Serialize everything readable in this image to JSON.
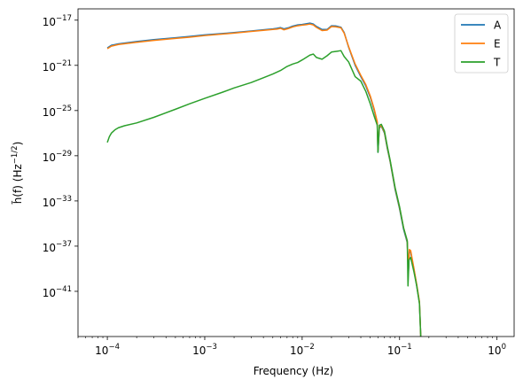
{
  "chart_data": {
    "type": "line",
    "xlabel": "Frequency (Hz)",
    "ylabel_parts": {
      "sym": "h̃(f)",
      "unit": "(Hz",
      "exp": "−1/2",
      "close": ")"
    },
    "xscale": "log",
    "yscale": "log",
    "xlim": [
      5e-05,
      1.5
    ],
    "ylim": [
      1e-45,
      1e-16
    ],
    "grid": false,
    "legend_placement": "top-right",
    "x_ticks": [
      {
        "value": 0.0001,
        "base": "10",
        "exp": "−4"
      },
      {
        "value": 0.001,
        "base": "10",
        "exp": "−3"
      },
      {
        "value": 0.01,
        "base": "10",
        "exp": "−2"
      },
      {
        "value": 0.1,
        "base": "10",
        "exp": "−1"
      },
      {
        "value": 1,
        "base": "10",
        "exp": "0"
      }
    ],
    "y_ticks": [
      {
        "value": 1e-17,
        "base": "10",
        "exp": "−17"
      },
      {
        "value": 1e-21,
        "base": "10",
        "exp": "−21"
      },
      {
        "value": 1e-25,
        "base": "10",
        "exp": "−25"
      },
      {
        "value": 1e-29,
        "base": "10",
        "exp": "−29"
      },
      {
        "value": 1e-33,
        "base": "10",
        "exp": "−33"
      },
      {
        "value": 1e-37,
        "base": "10",
        "exp": "−37"
      },
      {
        "value": 1e-41,
        "base": "10",
        "exp": "−41"
      }
    ],
    "series": [
      {
        "name": "A",
        "color": "#1f77b4",
        "points": [
          [
            0.0001,
            3.5e-20
          ],
          [
            0.00011,
            6e-20
          ],
          [
            0.00013,
            8e-20
          ],
          [
            0.0002,
            1.3e-19
          ],
          [
            0.0003,
            1.9e-19
          ],
          [
            0.0005,
            2.8e-19
          ],
          [
            0.0007,
            3.6e-19
          ],
          [
            0.001,
            5e-19
          ],
          [
            0.0015,
            6.5e-19
          ],
          [
            0.002,
            8e-19
          ],
          [
            0.003,
            1.1e-18
          ],
          [
            0.004,
            1.4e-18
          ],
          [
            0.005,
            1.7e-18
          ],
          [
            0.0055,
            1.9e-18
          ],
          [
            0.006,
            2.2e-18
          ],
          [
            0.0065,
            1.7e-18
          ],
          [
            0.0072,
            2.1e-18
          ],
          [
            0.008,
            3e-18
          ],
          [
            0.009,
            3.8e-18
          ],
          [
            0.01,
            4.2e-18
          ],
          [
            0.011,
            4.8e-18
          ],
          [
            0.012,
            5.5e-18
          ],
          [
            0.013,
            4.6e-18
          ],
          [
            0.014,
            2.8e-18
          ],
          [
            0.016,
            1.5e-18
          ],
          [
            0.018,
            1.5e-18
          ],
          [
            0.02,
            3.2e-18
          ],
          [
            0.022,
            3.1e-18
          ],
          [
            0.025,
            2.4e-18
          ],
          [
            0.027,
            8e-19
          ],
          [
            0.03,
            4e-20
          ],
          [
            0.035,
            1e-21
          ],
          [
            0.04,
            1e-22
          ],
          [
            0.045,
            1.5e-23
          ],
          [
            0.05,
            1.5e-24
          ],
          [
            0.055,
            1e-25
          ],
          [
            0.059,
            8e-27
          ],
          [
            0.06,
            2e-29
          ],
          [
            0.062,
            3e-27
          ],
          [
            0.065,
            4e-27
          ],
          [
            0.07,
            1e-27
          ],
          [
            0.075,
            4e-29
          ],
          [
            0.08,
            3e-30
          ],
          [
            0.09,
            1e-32
          ],
          [
            0.1,
            2e-34
          ],
          [
            0.11,
            3e-36
          ],
          [
            0.12,
            2e-37
          ],
          [
            0.123,
            4e-40
          ],
          [
            0.126,
            3e-38
          ],
          [
            0.13,
            3e-38
          ],
          [
            0.14,
            1e-39
          ],
          [
            0.15,
            3e-41
          ],
          [
            0.16,
            1e-42
          ],
          [
            0.165,
            1e-45
          ]
        ]
      },
      {
        "name": "E",
        "color": "#ff7f0e",
        "points": [
          [
            0.0001,
            3e-20
          ],
          [
            0.00011,
            5e-20
          ],
          [
            0.00013,
            7e-20
          ],
          [
            0.0002,
            1.1e-19
          ],
          [
            0.0003,
            1.6e-19
          ],
          [
            0.0005,
            2.4e-19
          ],
          [
            0.0007,
            3.1e-19
          ],
          [
            0.001,
            4.3e-19
          ],
          [
            0.0015,
            5.8e-19
          ],
          [
            0.002,
            7.2e-19
          ],
          [
            0.003,
            1e-18
          ],
          [
            0.004,
            1.25e-18
          ],
          [
            0.005,
            1.5e-18
          ],
          [
            0.0055,
            1.6e-18
          ],
          [
            0.006,
            1.9e-18
          ],
          [
            0.0065,
            1.4e-18
          ],
          [
            0.0072,
            1.8e-18
          ],
          [
            0.008,
            2.5e-18
          ],
          [
            0.009,
            3.2e-18
          ],
          [
            0.01,
            3.6e-18
          ],
          [
            0.011,
            4e-18
          ],
          [
            0.012,
            4.5e-18
          ],
          [
            0.013,
            3.8e-18
          ],
          [
            0.014,
            2.3e-18
          ],
          [
            0.016,
            1.2e-18
          ],
          [
            0.018,
            1.3e-18
          ],
          [
            0.02,
            2.7e-18
          ],
          [
            0.022,
            2.6e-18
          ],
          [
            0.025,
            2.1e-18
          ],
          [
            0.027,
            7e-19
          ],
          [
            0.03,
            4.5e-20
          ],
          [
            0.035,
            1.3e-21
          ],
          [
            0.04,
            1.3e-22
          ],
          [
            0.045,
            2e-23
          ],
          [
            0.05,
            2e-24
          ],
          [
            0.055,
            1.3e-25
          ],
          [
            0.059,
            1e-26
          ],
          [
            0.06,
            3e-29
          ],
          [
            0.062,
            3.5e-27
          ],
          [
            0.065,
            4.5e-27
          ],
          [
            0.07,
            1.2e-27
          ],
          [
            0.075,
            5e-29
          ],
          [
            0.08,
            3.5e-30
          ],
          [
            0.09,
            1.3e-32
          ],
          [
            0.1,
            2.5e-34
          ],
          [
            0.11,
            4e-36
          ],
          [
            0.12,
            2.5e-37
          ],
          [
            0.123,
            5e-40
          ],
          [
            0.126,
            5e-38
          ],
          [
            0.13,
            4e-38
          ],
          [
            0.14,
            1.2e-39
          ],
          [
            0.15,
            4e-41
          ],
          [
            0.16,
            1.2e-42
          ],
          [
            0.165,
            1e-45
          ]
        ]
      },
      {
        "name": "T",
        "color": "#2ca02c",
        "points": [
          [
            0.0001,
            1.5e-28
          ],
          [
            0.000105,
            5e-28
          ],
          [
            0.00011,
            1e-27
          ],
          [
            0.00012,
            2e-27
          ],
          [
            0.00013,
            3e-27
          ],
          [
            0.00015,
            4.5e-27
          ],
          [
            0.0002,
            8e-27
          ],
          [
            0.0003,
            2.5e-26
          ],
          [
            0.0005,
            1.3e-25
          ],
          [
            0.0007,
            4e-25
          ],
          [
            0.001,
            1.2e-24
          ],
          [
            0.0015,
            4e-24
          ],
          [
            0.002,
            1e-23
          ],
          [
            0.003,
            3e-23
          ],
          [
            0.004,
            8e-23
          ],
          [
            0.005,
            1.7e-22
          ],
          [
            0.006,
            3.5e-22
          ],
          [
            0.007,
            8e-22
          ],
          [
            0.008,
            1.3e-21
          ],
          [
            0.009,
            1.8e-21
          ],
          [
            0.01,
            3e-21
          ],
          [
            0.011,
            5e-21
          ],
          [
            0.012,
            8e-21
          ],
          [
            0.013,
            1e-20
          ],
          [
            0.014,
            5e-21
          ],
          [
            0.016,
            3.5e-21
          ],
          [
            0.018,
            7e-21
          ],
          [
            0.02,
            1.5e-20
          ],
          [
            0.022,
            1.7e-20
          ],
          [
            0.025,
            2e-20
          ],
          [
            0.027,
            6e-21
          ],
          [
            0.03,
            2e-21
          ],
          [
            0.035,
            1e-22
          ],
          [
            0.04,
            4e-23
          ],
          [
            0.045,
            5e-24
          ],
          [
            0.05,
            4e-25
          ],
          [
            0.055,
            3e-26
          ],
          [
            0.059,
            5e-27
          ],
          [
            0.06,
            2e-29
          ],
          [
            0.062,
            5e-27
          ],
          [
            0.065,
            6e-27
          ],
          [
            0.07,
            1.5e-27
          ],
          [
            0.075,
            6e-29
          ],
          [
            0.08,
            4e-30
          ],
          [
            0.09,
            1.5e-32
          ],
          [
            0.1,
            3e-34
          ],
          [
            0.11,
            4e-36
          ],
          [
            0.12,
            3e-37
          ],
          [
            0.122,
            3e-41
          ],
          [
            0.125,
            6e-39
          ],
          [
            0.13,
            1e-38
          ],
          [
            0.14,
            6e-40
          ],
          [
            0.15,
            3e-41
          ],
          [
            0.16,
            8e-43
          ],
          [
            0.165,
            1e-45
          ]
        ]
      }
    ]
  }
}
